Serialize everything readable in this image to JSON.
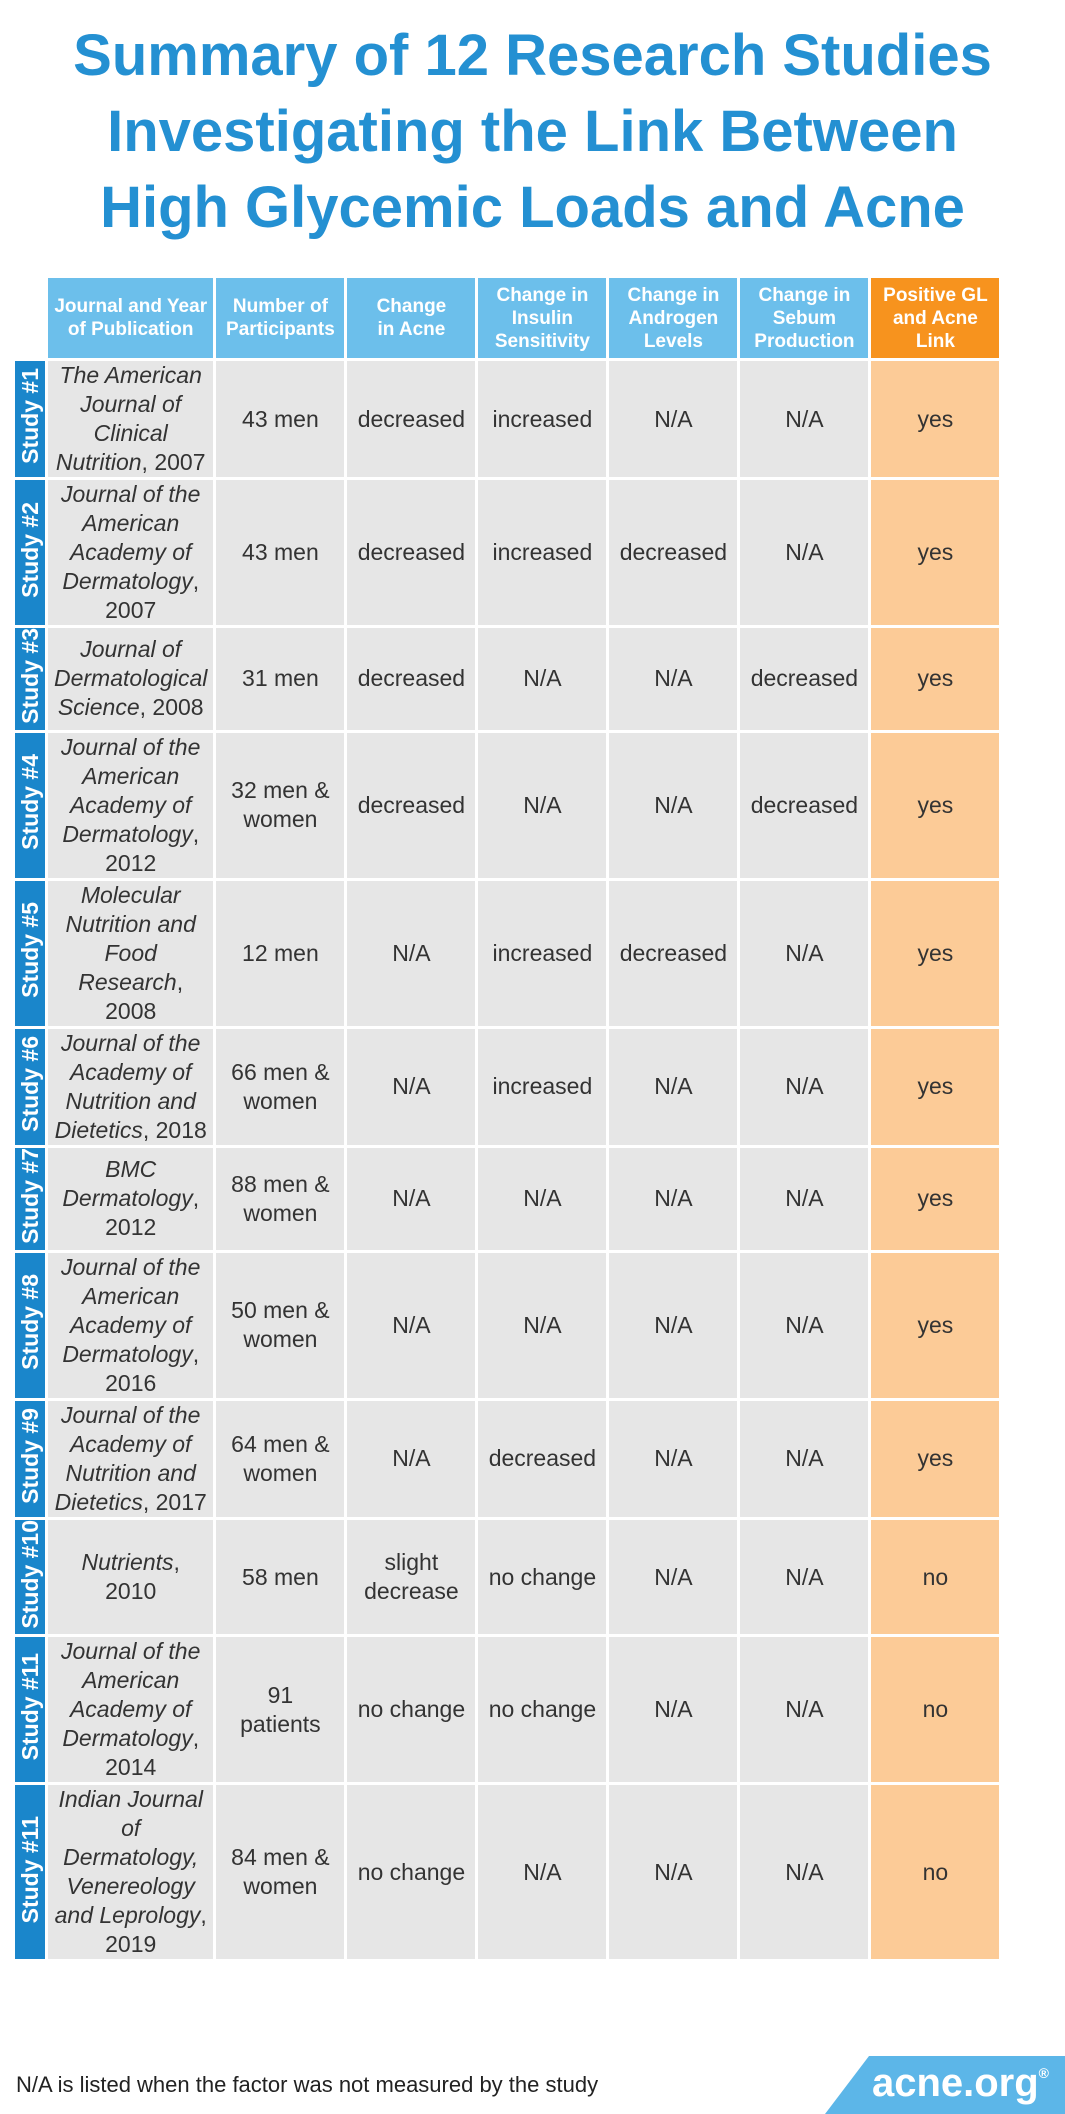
{
  "title": {
    "line1": "Summary of 12 Research Studies",
    "line2": "Investigating the Link Between",
    "line3": "High Glycemic Loads and Acne"
  },
  "table": {
    "headers": {
      "journal": [
        "Journal and Year",
        "of Publication"
      ],
      "participants": [
        "Number of",
        "Participants"
      ],
      "acne": [
        "Change",
        "in Acne"
      ],
      "insulin": [
        "Change in",
        "Insulin",
        "Sensitivity"
      ],
      "androgen": [
        "Change in",
        "Androgen",
        "Levels"
      ],
      "sebum": [
        "Change in",
        "Sebum",
        "Production"
      ],
      "positive": [
        "Positive GL",
        "and Acne",
        "Link"
      ]
    },
    "rows": [
      {
        "study": "Study #1",
        "journal_lines": [
          "The American",
          "Journal of Clinical",
          "Nutrition"
        ],
        "year": ", 2007",
        "participants": [
          "43 men"
        ],
        "acne": [
          "decreased"
        ],
        "insulin": "increased",
        "androgen": "N/A",
        "sebum": "N/A",
        "positive": "yes"
      },
      {
        "study": "Study #2",
        "journal_lines": [
          "Journal of the",
          "American",
          "Academy of",
          "Dermatology"
        ],
        "year": ",",
        "year_line": "2007",
        "participants": [
          "43 men"
        ],
        "acne": [
          "decreased"
        ],
        "insulin": "increased",
        "androgen": "decreased",
        "sebum": "N/A",
        "positive": "yes"
      },
      {
        "study": "Study #3",
        "journal_lines": [
          "Journal of",
          "Dermatological",
          "Science"
        ],
        "year": ", 2008",
        "participants": [
          "31 men"
        ],
        "acne": [
          "decreased"
        ],
        "insulin": "N/A",
        "androgen": "N/A",
        "sebum": "decreased",
        "positive": "yes"
      },
      {
        "study": "Study #4",
        "journal_lines": [
          "Journal of the",
          "American",
          "Academy of",
          "Dermatology"
        ],
        "year": ",",
        "year_line": "2012",
        "participants": [
          "32 men &",
          "women"
        ],
        "acne": [
          "decreased"
        ],
        "insulin": "N/A",
        "androgen": "N/A",
        "sebum": "decreased",
        "positive": "yes"
      },
      {
        "study": "Study #5",
        "journal_lines": [
          "Molecular",
          "Nutrition and",
          "Food Research"
        ],
        "year": ",",
        "year_line": "2008",
        "participants": [
          "12 men"
        ],
        "acne": [
          "N/A"
        ],
        "insulin": "increased",
        "androgen": "decreased",
        "sebum": "N/A",
        "positive": "yes"
      },
      {
        "study": "Study #6",
        "journal_lines": [
          "Journal of the",
          "Academy of",
          "Nutrition and",
          "Dietetics"
        ],
        "year": ", 2018",
        "participants": [
          "66 men &",
          "women"
        ],
        "acne": [
          "N/A"
        ],
        "insulin": "increased",
        "androgen": "N/A",
        "sebum": "N/A",
        "positive": "yes"
      },
      {
        "study": "Study #7",
        "journal_lines": [
          "BMC",
          "Dermatology"
        ],
        "year": ",",
        "year_line": "2012",
        "participants": [
          "88 men &",
          "women"
        ],
        "acne": [
          "N/A"
        ],
        "insulin": "N/A",
        "androgen": "N/A",
        "sebum": "N/A",
        "positive": "yes"
      },
      {
        "study": "Study #8",
        "journal_lines": [
          "Journal of the",
          "American",
          "Academy of",
          "Dermatology"
        ],
        "year": ",",
        "year_line": "2016",
        "participants": [
          "50 men &",
          "women"
        ],
        "acne": [
          "N/A"
        ],
        "insulin": "N/A",
        "androgen": "N/A",
        "sebum": "N/A",
        "positive": "yes"
      },
      {
        "study": "Study #9",
        "journal_lines": [
          "Journal of the",
          "Academy of",
          "Nutrition and",
          "Dietetics"
        ],
        "year": ", 2017",
        "participants": [
          "64 men &",
          "women"
        ],
        "acne": [
          "N/A"
        ],
        "insulin": "decreased",
        "androgen": "N/A",
        "sebum": "N/A",
        "positive": "yes"
      },
      {
        "study": "Study #10",
        "journal_lines": [
          "Nutrients"
        ],
        "year": ", 2010",
        "participants": [
          "58 men"
        ],
        "acne": [
          "slight",
          "decrease"
        ],
        "insulin": "no change",
        "androgen": "N/A",
        "sebum": "N/A",
        "positive": "no"
      },
      {
        "study": "Study #11",
        "journal_lines": [
          "Journal of the",
          "American",
          "Academy of",
          "Dermatology"
        ],
        "year": ",",
        "year_line": "2014",
        "participants": [
          "91",
          "patients"
        ],
        "acne": [
          "no change"
        ],
        "insulin": "no change",
        "androgen": "N/A",
        "sebum": "N/A",
        "positive": "no"
      },
      {
        "study": "Study #11",
        "journal_lines": [
          "Indian Journal",
          "of Dermatology,",
          "Venereology",
          "and Leprology"
        ],
        "year": ",",
        "year_line": "2019",
        "participants": [
          "84 men &",
          "women"
        ],
        "acne": [
          "no change"
        ],
        "insulin": "N/A",
        "androgen": "N/A",
        "sebum": "N/A",
        "positive": "no"
      }
    ]
  },
  "footnote": "N/A is listed when the factor was not measured by the study",
  "brand": {
    "name": "acne.org",
    "mark": "®"
  }
}
